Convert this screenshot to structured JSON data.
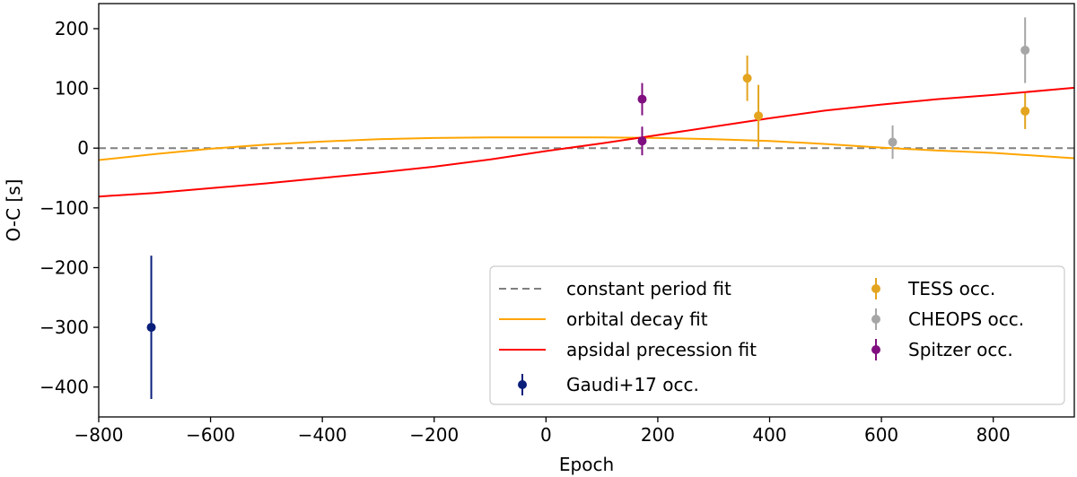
{
  "chart_data": {
    "type": "scatter",
    "xlabel": "Epoch",
    "ylabel": "O-C [s]",
    "xlim": [
      -800,
      945
    ],
    "ylim": [
      -450,
      242
    ],
    "xticks": [
      -800,
      -600,
      -400,
      -200,
      0,
      200,
      400,
      600,
      800
    ],
    "xtick_labels": [
      "−800",
      "−600",
      "−400",
      "−200",
      "0",
      "200",
      "400",
      "600",
      "800"
    ],
    "yticks": [
      -400,
      -300,
      -200,
      -100,
      0,
      100,
      200
    ],
    "ytick_labels": [
      "−400",
      "−300",
      "−200",
      "−100",
      "0",
      "100",
      "200"
    ],
    "grid": false,
    "legend_position": "lower-right",
    "lines": [
      {
        "name": "constant period fit",
        "color": "#808080",
        "dash": true,
        "x": [
          -800,
          945
        ],
        "y": [
          0,
          0
        ]
      },
      {
        "name": "orbital decay fit",
        "color": "#ffa500",
        "dash": false,
        "x": [
          -800,
          -700,
          -600,
          -500,
          -400,
          -300,
          -200,
          -100,
          0,
          100,
          200,
          300,
          400,
          500,
          600,
          700,
          800,
          945
        ],
        "y": [
          -20,
          -10,
          -1,
          6,
          11,
          15,
          17,
          18,
          18,
          18,
          17,
          15,
          12,
          7,
          1,
          -4,
          -8,
          -17
        ]
      },
      {
        "name": "apsidal precession fit",
        "color": "#ff0000",
        "dash": false,
        "x": [
          -800,
          -700,
          -600,
          -500,
          -400,
          -300,
          -200,
          -100,
          0,
          100,
          200,
          300,
          400,
          500,
          600,
          700,
          800,
          945
        ],
        "y": [
          -81,
          -75,
          -67,
          -59,
          -50,
          -41,
          -31,
          -19,
          -5,
          8,
          22,
          36,
          50,
          63,
          73,
          82,
          89,
          101
        ]
      }
    ],
    "series": [
      {
        "name": "Gaudi+17 occ.",
        "color": "#0a1f7a",
        "points": [
          {
            "x": -706,
            "y": -300,
            "err": 120
          }
        ]
      },
      {
        "name": "TESS occ.",
        "color": "#e3a41f",
        "points": [
          {
            "x": 360,
            "y": 117,
            "err": 38
          },
          {
            "x": 380,
            "y": 54,
            "err": 52
          },
          {
            "x": 857,
            "y": 62,
            "err": 30
          }
        ]
      },
      {
        "name": "CHEOPS occ.",
        "color": "#a6a6a6",
        "points": [
          {
            "x": 620,
            "y": 10,
            "err": 28
          },
          {
            "x": 857,
            "y": 164,
            "err": 55
          }
        ]
      },
      {
        "name": "Spitzer occ.",
        "color": "#800f80",
        "points": [
          {
            "x": 172,
            "y": 82,
            "err": 27
          },
          {
            "x": 172,
            "y": 12,
            "err": 24
          }
        ]
      }
    ],
    "legend_columns": [
      [
        "constant period fit",
        "orbital decay fit",
        "apsidal precession fit",
        "Gaudi+17 occ."
      ],
      [
        "TESS occ.",
        "CHEOPS occ.",
        "Spitzer occ."
      ]
    ]
  }
}
